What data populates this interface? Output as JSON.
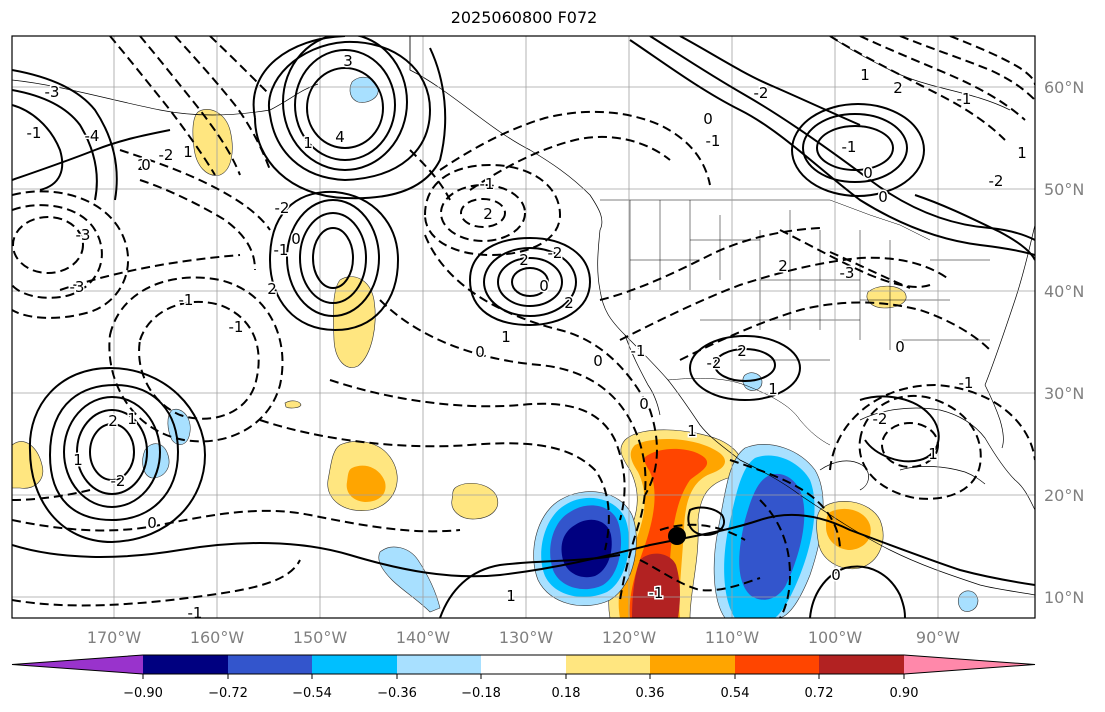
{
  "title": "2025060800 F072",
  "lon_labels": [
    "170°W",
    "160°W",
    "150°W",
    "140°W",
    "130°W",
    "120°W",
    "110°W",
    "100°W",
    "90°W"
  ],
  "lat_labels": [
    "60°N",
    "50°N",
    "40°N",
    "30°N",
    "20°N",
    "10°N"
  ],
  "colorbar": {
    "ticks": [
      "−0.90",
      "−0.72",
      "−0.54",
      "−0.36",
      "−0.18",
      "0.18",
      "0.36",
      "0.54",
      "0.72",
      "0.90"
    ],
    "colors": [
      "#9933cc",
      "#000080",
      "#3355cc",
      "#00bfff",
      "#a8e0ff",
      "#ffffff",
      "#ffe680",
      "#ffa500",
      "#ff4500",
      "#b22222",
      "#ff88aa"
    ]
  },
  "contour_labels": [
    "3",
    "4",
    "-3",
    "-4",
    "2",
    "-2",
    "1",
    "-1",
    "0",
    "1",
    "-2",
    "2",
    "0",
    "-1",
    "-3",
    "-3",
    "2",
    "1",
    "-2",
    "1",
    "0",
    "-1",
    "2",
    "-1",
    "2",
    "0",
    "-1",
    "-2",
    "2",
    "1",
    "0",
    "0",
    "-3",
    "2",
    "2",
    "-2",
    "1",
    "0",
    "-1",
    "-2",
    "-1",
    "0",
    "1",
    "2",
    "1",
    "-2",
    "-1",
    "0",
    "-2",
    "1",
    "0",
    "-1",
    "1",
    "-1",
    "0",
    "0",
    "-1",
    "-1",
    "1"
  ],
  "colors": {
    "contour": "#000000",
    "marker": "#000000",
    "gridline": "#a0a0a0"
  }
}
